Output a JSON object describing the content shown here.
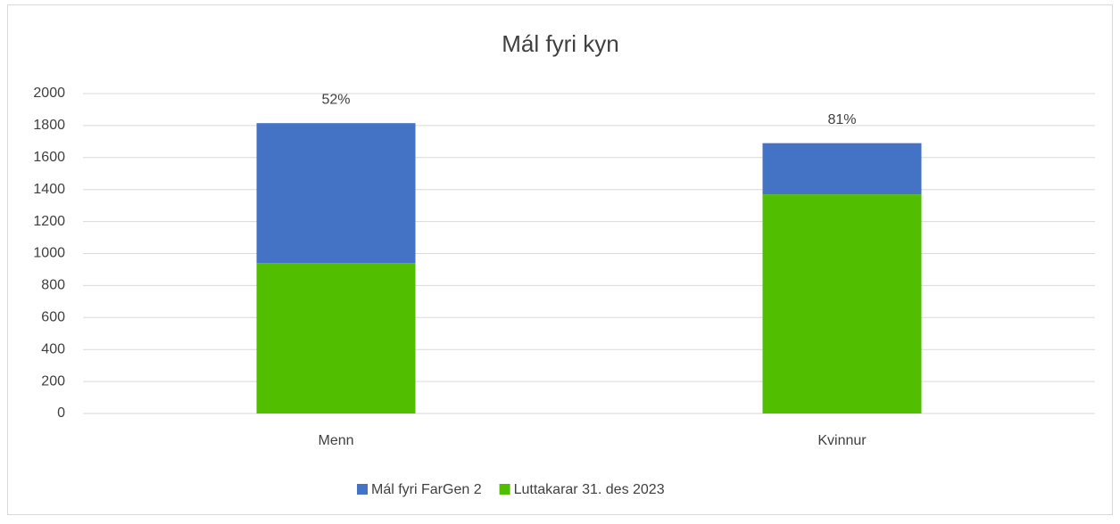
{
  "chart_data": {
    "type": "stacked_bar",
    "title": "Mál fyri kyn",
    "categories": [
      "Menn",
      "Kvinnur"
    ],
    "series": [
      {
        "name": "Mál fyri FarGen 2",
        "color": "#4472c4",
        "values": [
          875,
          320
        ]
      },
      {
        "name": "Luttakarar 31. des 2023",
        "color": "#52be00",
        "values": [
          940,
          1370
        ]
      }
    ],
    "annotations": [
      "52%",
      "81%"
    ],
    "ylim": [
      0,
      2000
    ],
    "yticks": [
      0,
      200,
      400,
      600,
      800,
      1000,
      1200,
      1400,
      1600,
      1800,
      2000
    ],
    "grid": true,
    "legend": "bottom"
  }
}
